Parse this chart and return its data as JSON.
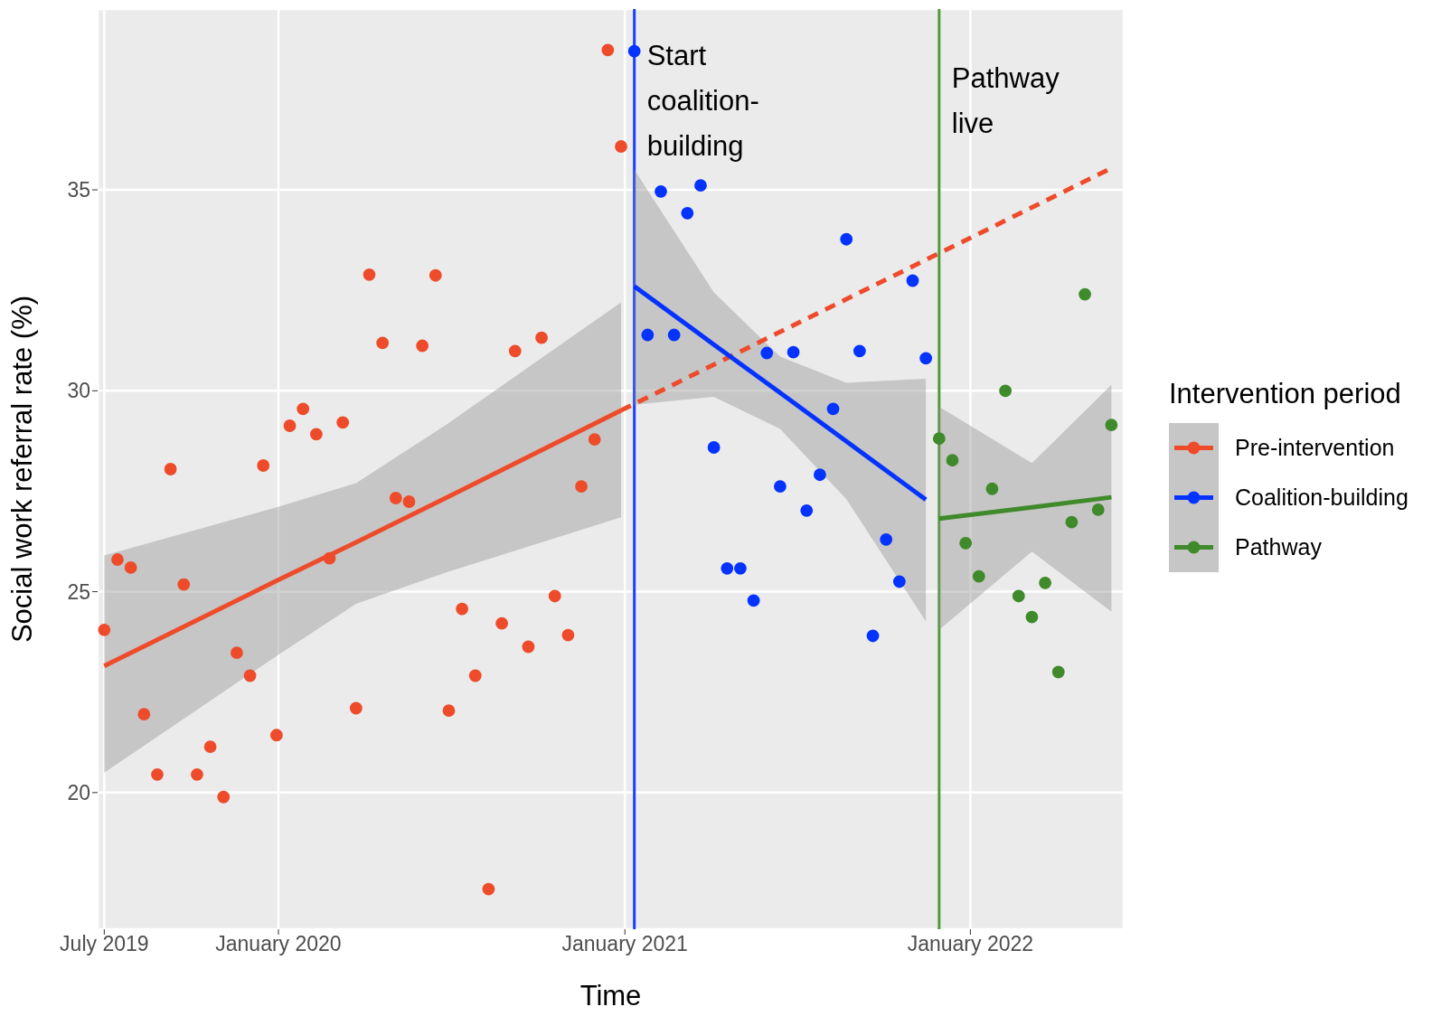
{
  "chart_data": {
    "type": "scatter",
    "xlabel": "Time",
    "ylabel": "Social work referral rate (%)",
    "legend_title": "Intervention period",
    "legend": "right",
    "grid": true,
    "marker": "circle",
    "xlim": [
      "2019-06-24",
      "2022-06-12"
    ],
    "xticks": [
      {
        "value": "2019-07-01",
        "label": "July 2019"
      },
      {
        "value": "2020-01-01",
        "label": "January 2020"
      },
      {
        "value": "2021-01-01",
        "label": "January 2021"
      },
      {
        "value": "2022-01-01",
        "label": "January 2022"
      }
    ],
    "ylim": [
      16.6,
      39.5
    ],
    "yticks": [
      20,
      25,
      30,
      35
    ],
    "ref_lines": [
      {
        "axis": "x",
        "value": "2021-01-11",
        "label": "Start coalition-building",
        "color": "#1741ff"
      },
      {
        "axis": "x",
        "value": "2021-11-29",
        "label": "Pathway live",
        "color": "#509a38"
      }
    ],
    "series": [
      {
        "type": "line",
        "marker": "none",
        "color": "#ee4b2b",
        "x": [
          "2019-07-01",
          "2019-12-30",
          "2020-03-23",
          "2020-06-29",
          "2020-12-28"
        ],
        "values": [
          23.15,
          25.27,
          26.23,
          27.37,
          29.51
        ],
        "lower": [
          20.5,
          23.4,
          24.7,
          25.5,
          26.85
        ],
        "upper": [
          25.9,
          27.1,
          27.7,
          29.2,
          32.2
        ]
      },
      {
        "type": "line",
        "marker": "none",
        "line_style": "dashed",
        "color": "#ee4b2b",
        "x": [
          "2020-12-28",
          "2022-05-30"
        ],
        "values": [
          29.51,
          35.54
        ]
      },
      {
        "type": "line",
        "marker": "none",
        "color": "#0433ff",
        "x": [
          "2021-01-11",
          "2021-04-05",
          "2021-06-14",
          "2021-08-23",
          "2021-11-15"
        ],
        "values": [
          32.6,
          31.15,
          29.95,
          28.74,
          27.29
        ],
        "lower": [
          29.65,
          29.85,
          29.05,
          27.3,
          24.26
        ],
        "upper": [
          35.5,
          32.45,
          30.85,
          30.2,
          30.3
        ]
      },
      {
        "type": "line",
        "marker": "none",
        "color": "#3f8a2a",
        "x": [
          "2021-11-29",
          "2022-03-07",
          "2022-05-30"
        ],
        "values": [
          26.82,
          27.1,
          27.35
        ],
        "lower": [
          24.05,
          26.0,
          24.5
        ],
        "upper": [
          29.6,
          28.2,
          30.15
        ]
      },
      {
        "name": "Pre-intervention",
        "color": "#ee4b2b",
        "x": [
          "2019-07-01",
          "2019-07-15",
          "2019-07-29",
          "2019-08-12",
          "2019-08-26",
          "2019-09-09",
          "2019-09-23",
          "2019-10-07",
          "2019-10-21",
          "2019-11-04",
          "2019-11-18",
          "2019-12-02",
          "2019-12-16",
          "2019-12-30",
          "2020-01-13",
          "2020-01-27",
          "2020-02-10",
          "2020-02-24",
          "2020-03-09",
          "2020-03-23",
          "2020-04-06",
          "2020-04-20",
          "2020-05-04",
          "2020-05-18",
          "2020-06-01",
          "2020-06-15",
          "2020-06-29",
          "2020-07-13",
          "2020-07-27",
          "2020-08-10",
          "2020-08-24",
          "2020-09-07",
          "2020-09-21",
          "2020-10-05",
          "2020-10-19",
          "2020-11-02",
          "2020-11-16",
          "2020-11-30",
          "2020-12-14",
          "2020-12-28"
        ],
        "values": [
          24.05,
          25.8,
          25.6,
          21.95,
          20.45,
          28.05,
          25.18,
          20.45,
          21.14,
          19.89,
          23.48,
          22.91,
          28.14,
          21.43,
          29.13,
          29.55,
          28.92,
          25.83,
          29.21,
          22.1,
          32.89,
          31.19,
          27.33,
          27.24,
          31.12,
          32.87,
          22.04,
          24.57,
          22.91,
          17.6,
          24.21,
          30.99,
          23.63,
          31.32,
          24.89,
          23.92,
          27.62,
          28.79,
          38.48,
          36.08
        ]
      },
      {
        "name": "Coalition-building",
        "color": "#0433ff",
        "x": [
          "2021-01-11",
          "2021-01-25",
          "2021-02-08",
          "2021-02-22",
          "2021-03-08",
          "2021-03-22",
          "2021-04-05",
          "2021-04-19",
          "2021-05-03",
          "2021-05-17",
          "2021-05-31",
          "2021-06-14",
          "2021-06-28",
          "2021-07-12",
          "2021-07-26",
          "2021-08-09",
          "2021-08-23",
          "2021-09-06",
          "2021-09-20",
          "2021-10-04",
          "2021-10-18",
          "2021-11-01",
          "2021-11-15"
        ],
        "values": [
          38.45,
          31.39,
          34.96,
          31.39,
          34.42,
          35.11,
          28.59,
          25.58,
          25.58,
          24.78,
          30.94,
          27.62,
          30.96,
          27.02,
          27.91,
          29.55,
          33.77,
          30.99,
          23.9,
          26.3,
          25.25,
          32.74,
          30.81
        ]
      },
      {
        "name": "Pathway",
        "color": "#3f8a2a",
        "x": [
          "2021-11-29",
          "2021-12-13",
          "2021-12-27",
          "2022-01-10",
          "2022-01-24",
          "2022-02-07",
          "2022-02-21",
          "2022-03-07",
          "2022-03-21",
          "2022-04-04",
          "2022-04-18",
          "2022-05-02",
          "2022-05-16",
          "2022-05-30"
        ],
        "values": [
          28.81,
          28.27,
          26.21,
          25.38,
          27.56,
          30.0,
          24.89,
          24.37,
          25.22,
          23.0,
          26.73,
          32.4,
          27.04,
          29.15
        ]
      }
    ]
  }
}
